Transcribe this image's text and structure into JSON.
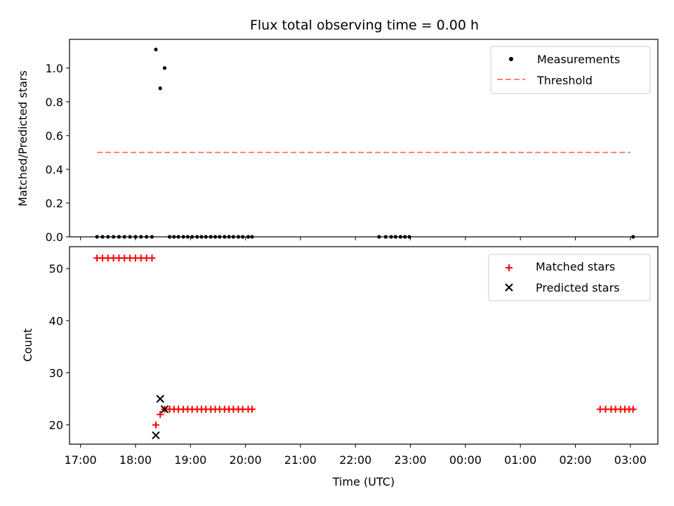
{
  "chart_data": {
    "title": "Flux total observing time = 0.00 h",
    "xlabel": "Time (UTC)",
    "x_tick_labels": [
      "17:00",
      "18:00",
      "19:00",
      "20:00",
      "21:00",
      "22:00",
      "23:00",
      "00:00",
      "01:00",
      "02:00",
      "03:00"
    ],
    "x_range_hours": [
      16.8,
      27.5
    ],
    "panels": [
      {
        "type": "scatter",
        "ylabel": "Matched/Predicted stars",
        "ylim": [
          0,
          1.17
        ],
        "y_ticks": [
          "0.0",
          "0.2",
          "0.4",
          "0.6",
          "0.8",
          "1.0"
        ],
        "legend_position": "top-right",
        "series": [
          {
            "name": "Measurements",
            "marker": "dot",
            "color": "#000000",
            "x_hours": [
              17.3,
              17.4,
              17.5,
              17.6,
              17.7,
              17.8,
              17.9,
              18.0,
              18.1,
              18.2,
              18.3,
              18.37,
              18.45,
              18.53,
              18.62,
              18.7,
              18.78,
              18.87,
              18.95,
              19.03,
              19.12,
              19.2,
              19.28,
              19.37,
              19.45,
              19.53,
              19.62,
              19.7,
              19.78,
              19.87,
              19.95,
              20.05,
              20.12,
              22.43,
              22.55,
              22.65,
              22.73,
              22.82,
              22.9,
              22.98,
              27.05
            ],
            "y": [
              0,
              0,
              0,
              0,
              0,
              0,
              0,
              0,
              0,
              0,
              0,
              1.11,
              0.88,
              1.0,
              0,
              0,
              0,
              0,
              0,
              0,
              0,
              0,
              0,
              0,
              0,
              0,
              0,
              0,
              0,
              0,
              0,
              0,
              0,
              0,
              0,
              0,
              0,
              0,
              0,
              0,
              0
            ]
          },
          {
            "name": "Threshold",
            "style": "dashed",
            "color": "#ff7f7f",
            "x_hours": [
              17.3,
              27.0
            ],
            "y": [
              0.5,
              0.5
            ]
          }
        ]
      },
      {
        "type": "scatter",
        "ylabel": "Count",
        "ylim": [
          16.3,
          54.2
        ],
        "y_ticks": [
          "20",
          "30",
          "40",
          "50"
        ],
        "legend_position": "top-right",
        "series": [
          {
            "name": "Matched stars",
            "marker": "plus",
            "color": "#ff0000",
            "x_hours": [
              17.3,
              17.4,
              17.5,
              17.6,
              17.7,
              17.8,
              17.9,
              18.0,
              18.1,
              18.2,
              18.3,
              18.37,
              18.45,
              18.53,
              18.62,
              18.7,
              18.78,
              18.87,
              18.95,
              19.03,
              19.12,
              19.2,
              19.28,
              19.37,
              19.45,
              19.53,
              19.62,
              19.7,
              19.78,
              19.87,
              19.95,
              20.05,
              20.12,
              26.45,
              26.55,
              26.65,
              26.73,
              26.82,
              26.9,
              26.98,
              27.05
            ],
            "y": [
              52,
              52,
              52,
              52,
              52,
              52,
              52,
              52,
              52,
              52,
              52,
              20,
              22,
              23,
              23,
              23,
              23,
              23,
              23,
              23,
              23,
              23,
              23,
              23,
              23,
              23,
              23,
              23,
              23,
              23,
              23,
              23,
              23,
              23,
              23,
              23,
              23,
              23,
              23,
              23,
              23
            ]
          },
          {
            "name": "Predicted stars",
            "marker": "x",
            "color": "#000000",
            "x_hours": [
              18.37,
              18.45,
              18.53
            ],
            "y": [
              18,
              25,
              23
            ]
          }
        ]
      }
    ]
  }
}
